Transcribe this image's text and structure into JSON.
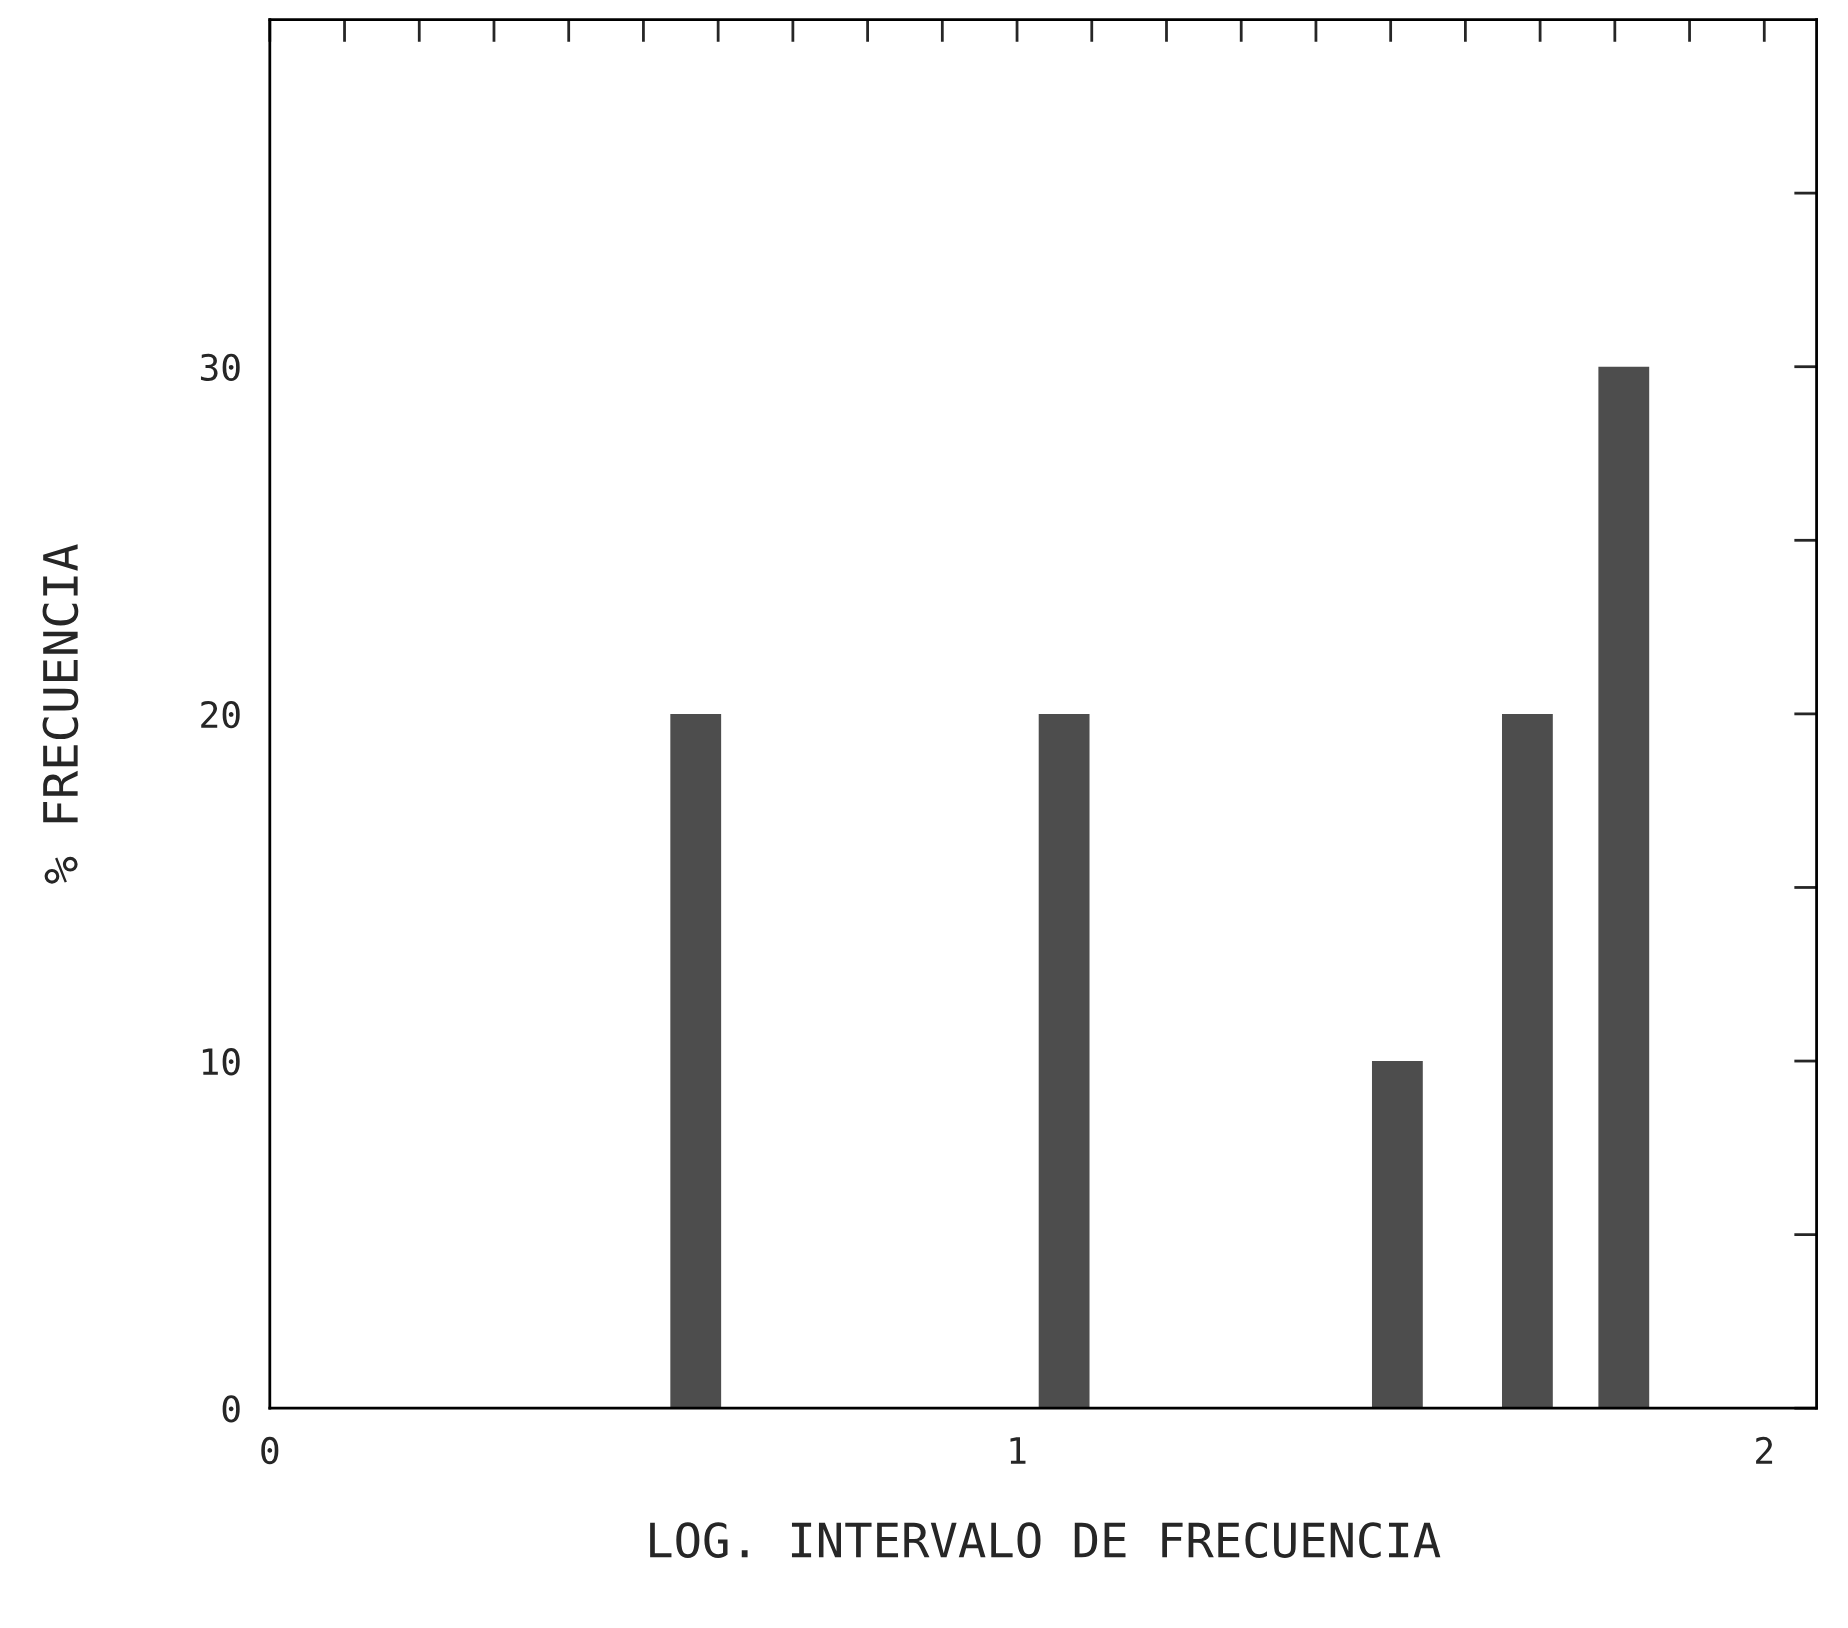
{
  "chart_data": {
    "type": "bar",
    "xlabel": "LOG. INTERVALO DE FRECUENCIA",
    "ylabel": "% FRECUENCIA",
    "x": [
      0.57,
      1.063,
      1.509,
      1.683,
      1.812
    ],
    "values": [
      20,
      20,
      10,
      20,
      30
    ],
    "color": "#4d4d4d",
    "xlim": [
      0,
      2.07
    ],
    "ylim": [
      0,
      40
    ],
    "xticks": [
      0,
      {
        "value": 0.1,
        "label": null
      },
      {
        "value": 0.2,
        "label": null
      },
      {
        "value": 0.3,
        "label": null
      },
      {
        "value": 0.4,
        "label": null
      },
      {
        "value": 0.5,
        "label": null
      },
      {
        "value": 0.6,
        "label": null
      },
      {
        "value": 0.7,
        "label": null
      },
      {
        "value": 0.8,
        "label": null
      },
      {
        "value": 0.9,
        "label": null
      },
      1,
      {
        "value": 1.1,
        "label": null
      },
      {
        "value": 1.2,
        "label": null
      },
      {
        "value": 1.3,
        "label": null
      },
      {
        "value": 1.4,
        "label": null
      },
      {
        "value": 1.5,
        "label": null
      },
      {
        "value": 1.6,
        "label": null
      },
      {
        "value": 1.7,
        "label": null
      },
      {
        "value": 1.8,
        "label": null
      },
      {
        "value": 1.9,
        "label": null
      },
      2
    ],
    "yticks": [
      0,
      {
        "value": 5,
        "label": null
      },
      10,
      {
        "value": 15,
        "label": null
      },
      20,
      {
        "value": 25,
        "label": null
      },
      30,
      {
        "value": 35,
        "label": null
      }
    ],
    "grid": false
  }
}
